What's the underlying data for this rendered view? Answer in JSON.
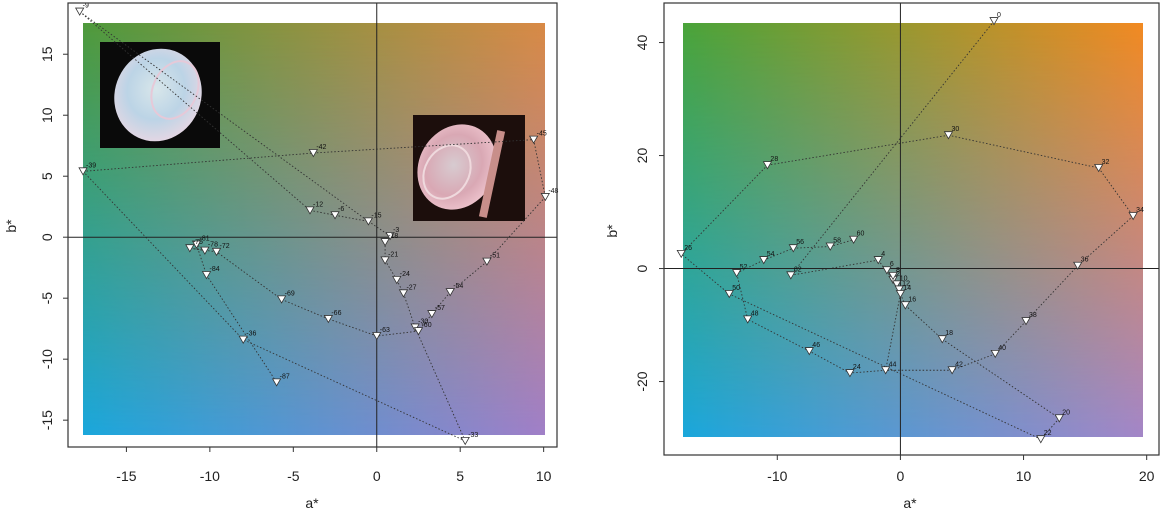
{
  "chart_data": [
    {
      "type": "scatter",
      "xlabel": "a*",
      "ylabel": "b*",
      "xlim": [
        -18.5,
        10.8
      ],
      "ylim": [
        -17.2,
        19.2
      ],
      "xticks": [
        -15,
        -10,
        -5,
        0,
        5,
        10
      ],
      "yticks": [
        -15,
        -10,
        -5,
        0,
        5,
        10,
        15
      ],
      "background_colors": {
        "tl": "#4f9a3c",
        "tr": "#d98a46",
        "bl": "#1aa7dc",
        "br": "#a07fc8"
      },
      "marker": "inverted-triangle",
      "line_style": "dotted",
      "points": [
        {
          "label": "-9",
          "x": -17.8,
          "y": 18.5
        },
        {
          "label": "-12",
          "x": -4.0,
          "y": 2.2
        },
        {
          "label": "-6",
          "x": -2.5,
          "y": 1.8
        },
        {
          "label": "-15",
          "x": -0.5,
          "y": 1.3
        },
        {
          "label": "-3",
          "x": 0.8,
          "y": 0.1
        },
        {
          "label": "-18",
          "x": 0.5,
          "y": -0.4
        },
        {
          "label": "-21",
          "x": 0.5,
          "y": -1.9
        },
        {
          "label": "-24",
          "x": 1.2,
          "y": -3.5
        },
        {
          "label": "-27",
          "x": 1.6,
          "y": -4.6
        },
        {
          "label": "-30",
          "x": 2.3,
          "y": -7.4
        },
        {
          "label": "-60",
          "x": 2.5,
          "y": -7.7
        },
        {
          "label": "-33",
          "x": 5.3,
          "y": -16.7
        },
        {
          "label": "-57",
          "x": 3.3,
          "y": -6.3
        },
        {
          "label": "-54",
          "x": 4.4,
          "y": -4.5
        },
        {
          "label": "-51",
          "x": 6.6,
          "y": -2.0
        },
        {
          "label": "-48",
          "x": 10.1,
          "y": 3.3
        },
        {
          "label": "-45",
          "x": 9.4,
          "y": 8.0
        },
        {
          "label": "-42",
          "x": -3.8,
          "y": 6.9
        },
        {
          "label": "-39",
          "x": -17.6,
          "y": 5.4
        },
        {
          "label": "-36",
          "x": -8.0,
          "y": -8.4
        },
        {
          "label": "-87",
          "x": -6.0,
          "y": -11.9
        },
        {
          "label": "-81",
          "x": -10.8,
          "y": -0.6
        },
        {
          "label": "-75",
          "x": -11.2,
          "y": -0.9
        },
        {
          "label": "-78",
          "x": -10.3,
          "y": -1.1
        },
        {
          "label": "-72",
          "x": -9.6,
          "y": -1.2
        },
        {
          "label": "-84",
          "x": -10.2,
          "y": -3.1
        },
        {
          "label": "-69",
          "x": -5.7,
          "y": -5.1
        },
        {
          "label": "-66",
          "x": -2.9,
          "y": -6.7
        },
        {
          "label": "-63",
          "x": 0.0,
          "y": -8.1
        }
      ],
      "connections": [
        [
          "-9",
          "-12"
        ],
        [
          "-12",
          "-6"
        ],
        [
          "-6",
          "-15"
        ],
        [
          "-15",
          "-3"
        ],
        [
          "-3",
          "-18"
        ],
        [
          "-18",
          "-21"
        ],
        [
          "-21",
          "-24"
        ],
        [
          "-24",
          "-27"
        ],
        [
          "-27",
          "-30"
        ],
        [
          "-30",
          "-33"
        ],
        [
          "-33",
          "-36"
        ],
        [
          "-36",
          "-39"
        ],
        [
          "-39",
          "-42"
        ],
        [
          "-42",
          "-45"
        ],
        [
          "-45",
          "-48"
        ],
        [
          "-48",
          "-51"
        ],
        [
          "-51",
          "-54"
        ],
        [
          "-54",
          "-57"
        ],
        [
          "-57",
          "-60"
        ],
        [
          "-60",
          "-63"
        ],
        [
          "-63",
          "-66"
        ],
        [
          "-66",
          "-69"
        ],
        [
          "-69",
          "-72"
        ],
        [
          "-72",
          "-75"
        ],
        [
          "-75",
          "-78"
        ],
        [
          "-78",
          "-81"
        ],
        [
          "-81",
          "-84"
        ],
        [
          "-84",
          "-87"
        ],
        [
          "-9",
          "-15"
        ]
      ]
    },
    {
      "type": "scatter",
      "xlabel": "a*",
      "ylabel": "b*",
      "xlim": [
        -19.2,
        21.0
      ],
      "ylim": [
        -33.0,
        47.0
      ],
      "xticks": [
        -10,
        0,
        10,
        20
      ],
      "yticks": [
        -20,
        0,
        20,
        40
      ],
      "background_colors": {
        "tl": "#4aa43a",
        "tr": "#f28a22",
        "bl": "#1aa7dc",
        "br": "#a386c8"
      },
      "marker": "inverted-triangle",
      "line_style": "dotted",
      "points": [
        {
          "label": "0",
          "x": 7.6,
          "y": 43.8
        },
        {
          "label": "2",
          "x": -0.6,
          "y": -2.0
        },
        {
          "label": "4",
          "x": -1.8,
          "y": 1.5
        },
        {
          "label": "6",
          "x": -1.1,
          "y": -0.3
        },
        {
          "label": "8",
          "x": -0.6,
          "y": -1.3
        },
        {
          "label": "10",
          "x": -0.3,
          "y": -2.8
        },
        {
          "label": "12",
          "x": -0.1,
          "y": -3.7
        },
        {
          "label": "14",
          "x": 0.0,
          "y": -4.5
        },
        {
          "label": "16",
          "x": 0.4,
          "y": -6.5
        },
        {
          "label": "18",
          "x": 3.4,
          "y": -12.5
        },
        {
          "label": "20",
          "x": 12.9,
          "y": -26.5
        },
        {
          "label": "22",
          "x": 11.4,
          "y": -30.2
        },
        {
          "label": "24",
          "x": -4.1,
          "y": -18.5
        },
        {
          "label": "26",
          "x": -17.8,
          "y": 2.6
        },
        {
          "label": "28",
          "x": -10.8,
          "y": 18.3
        },
        {
          "label": "30",
          "x": 3.9,
          "y": 23.6
        },
        {
          "label": "32",
          "x": 16.1,
          "y": 17.8
        },
        {
          "label": "34",
          "x": 18.9,
          "y": 9.3
        },
        {
          "label": "36",
          "x": 14.4,
          "y": 0.5
        },
        {
          "label": "38",
          "x": 10.2,
          "y": -9.3
        },
        {
          "label": "40",
          "x": 7.7,
          "y": -15.1
        },
        {
          "label": "42",
          "x": 4.2,
          "y": -18.0
        },
        {
          "label": "44",
          "x": -1.2,
          "y": -18.0
        },
        {
          "label": "46",
          "x": -7.4,
          "y": -14.6
        },
        {
          "label": "48",
          "x": -12.4,
          "y": -9.0
        },
        {
          "label": "50",
          "x": -13.9,
          "y": -4.5
        },
        {
          "label": "52",
          "x": -13.3,
          "y": -0.8
        },
        {
          "label": "54",
          "x": -11.1,
          "y": 1.5
        },
        {
          "label": "56",
          "x": -8.7,
          "y": 3.6
        },
        {
          "label": "58",
          "x": -5.7,
          "y": 3.9
        },
        {
          "label": "60",
          "x": -3.8,
          "y": 5.1
        },
        {
          "label": "62",
          "x": -8.9,
          "y": -1.2
        }
      ],
      "connections": [
        [
          "0",
          "62"
        ],
        [
          "62",
          "4"
        ],
        [
          "4",
          "2"
        ],
        [
          "2",
          "6"
        ],
        [
          "6",
          "8"
        ],
        [
          "8",
          "10"
        ],
        [
          "10",
          "12"
        ],
        [
          "12",
          "14"
        ],
        [
          "14",
          "16"
        ],
        [
          "16",
          "18"
        ],
        [
          "18",
          "20"
        ],
        [
          "20",
          "22"
        ],
        [
          "22",
          "50"
        ],
        [
          "50",
          "26"
        ],
        [
          "26",
          "28"
        ],
        [
          "28",
          "30"
        ],
        [
          "30",
          "32"
        ],
        [
          "32",
          "34"
        ],
        [
          "34",
          "36"
        ],
        [
          "36",
          "38"
        ],
        [
          "38",
          "40"
        ],
        [
          "40",
          "42"
        ],
        [
          "42",
          "44"
        ],
        [
          "44",
          "24"
        ],
        [
          "24",
          "46"
        ],
        [
          "46",
          "48"
        ],
        [
          "48",
          "52"
        ],
        [
          "52",
          "54"
        ],
        [
          "54",
          "56"
        ],
        [
          "56",
          "58"
        ],
        [
          "58",
          "60"
        ],
        [
          "14",
          "44"
        ]
      ]
    }
  ]
}
